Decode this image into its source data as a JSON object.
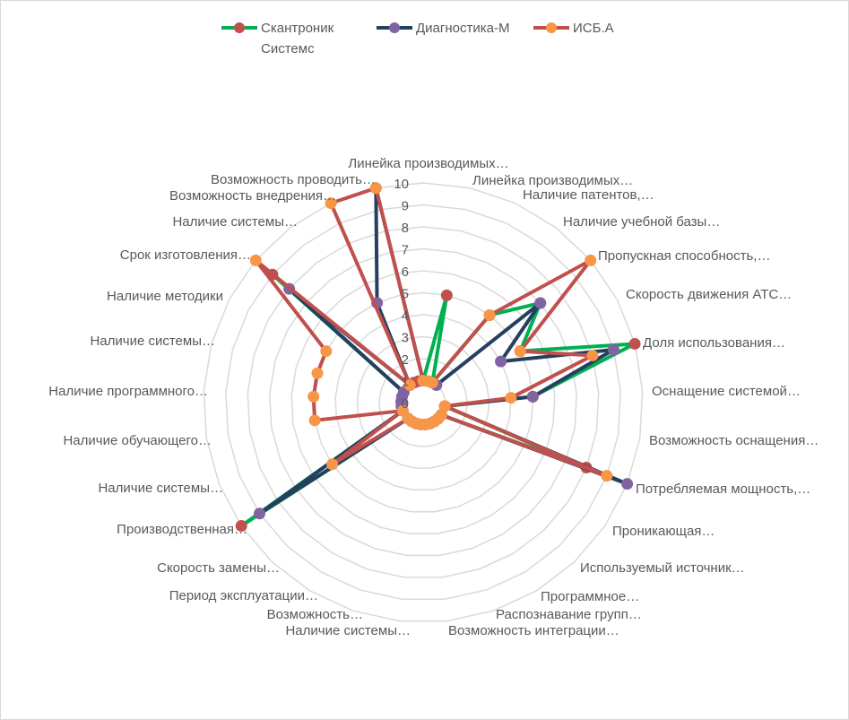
{
  "chart_data": {
    "type": "radar",
    "title": "",
    "categories": [
      "Линейка производимых…",
      "Линейка производимых…",
      "Наличие патентов,…",
      "Наличие учебной базы…",
      "Пропускная способность,…",
      "Скорость движения АТС…",
      "Доля использования…",
      "Оснащение системой…",
      "Возможность оснащения…",
      "Потребляемая мощность,…",
      "Проникающая…",
      "Используемый источник…",
      "Программное…",
      "Распознавание групп…",
      "Возможность интеграции…",
      "Наличие системы…",
      "Возможность…",
      "Период эксплуатации…",
      "Скорость замены…",
      "Производственная…",
      "Наличие системы…",
      "Наличие обучающего…",
      "Наличие программного…",
      "Наличие системы…",
      "Наличие методики",
      "Срок изготовления…",
      "Наличие системы…",
      "Возможность внедрения…",
      "Возможность проводить…"
    ],
    "series": [
      {
        "name": "Скантроник Системс",
        "line_color": "#00b050",
        "marker_color": "#c0504d",
        "values": [
          1,
          5,
          1,
          5,
          7,
          5,
          10,
          5,
          1,
          8,
          1,
          1,
          1,
          1,
          1,
          1,
          1,
          1,
          1,
          10,
          1,
          1,
          1,
          1,
          1,
          9,
          1,
          1,
          1
        ]
      },
      {
        "name": "Диагностика-М",
        "line_color": "#243f60",
        "marker_color": "#8064a2",
        "values": [
          1,
          1,
          1,
          1,
          7,
          4,
          9,
          5,
          1,
          10,
          1,
          1,
          1,
          1,
          1,
          1,
          1,
          1,
          1,
          9,
          1,
          1,
          1,
          1,
          1,
          8,
          1,
          5,
          10
        ]
      },
      {
        "name": "ИСБ.А",
        "line_color": "#c0504d",
        "marker_color": "#f79646",
        "values": [
          1,
          1,
          1,
          5,
          10,
          5,
          8,
          4,
          1,
          9,
          1,
          1,
          1,
          1,
          1,
          1,
          1,
          1,
          1,
          5,
          1,
          5,
          5,
          5,
          5,
          10,
          1,
          10,
          10
        ]
      }
    ],
    "legend_lines": [
      [
        "Скантроник",
        "Системс"
      ],
      [
        "Диагностика-М"
      ],
      [
        "ИСБ.А"
      ]
    ],
    "radial_axis": {
      "min": 0,
      "max": 10,
      "ticks": [
        "0",
        "1",
        "2",
        "3",
        "4",
        "5",
        "6",
        "7",
        "8",
        "9",
        "10"
      ]
    },
    "grid": true,
    "grid_color": "#d9d9d9",
    "legend_position": "top"
  }
}
